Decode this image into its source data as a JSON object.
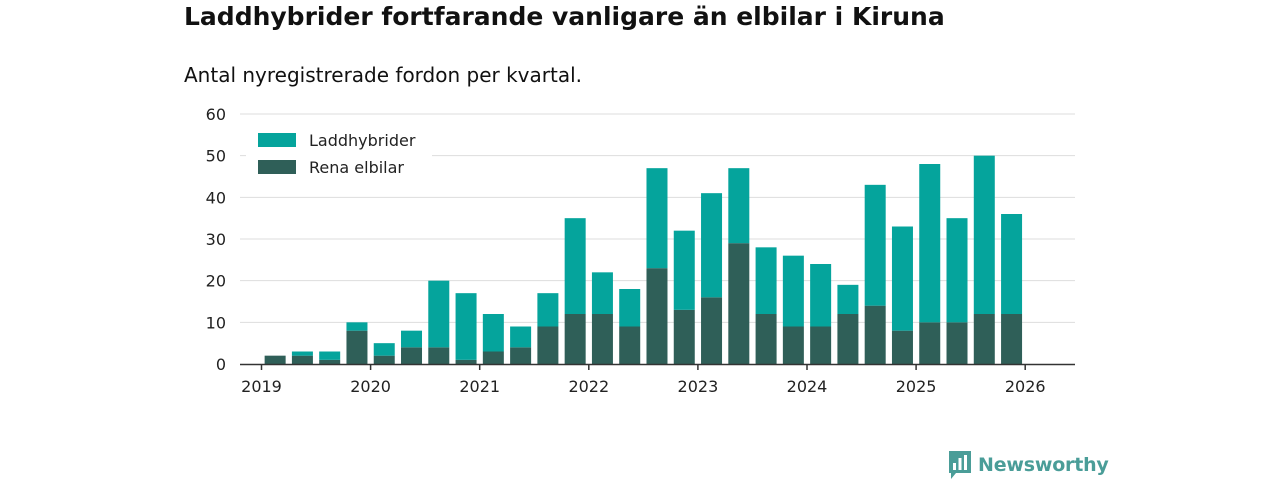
{
  "title": "Laddhybrider fortfarande vanligare än elbilar i Kiruna",
  "subtitle": "Antal nyregistrerade fordon per kvartal.",
  "brand": {
    "name": "Newsworthy",
    "icon": "newsworthy-logo-icon"
  },
  "colors": {
    "laddhybrider": "#05a49c",
    "rena_elbilar": "#2f5f58",
    "grid": "#dddddd",
    "axis": "#333333",
    "brand": "#4a9d98"
  },
  "chart_data": {
    "type": "bar",
    "stacked": true,
    "title": "Laddhybrider fortfarande vanligare än elbilar i Kiruna",
    "subtitle": "Antal nyregistrerade fordon per kvartal.",
    "xlabel": "",
    "ylabel": "",
    "ylim": [
      0,
      60
    ],
    "yticks": [
      0,
      10,
      20,
      30,
      40,
      50,
      60
    ],
    "xticks": [
      "2019",
      "2020",
      "2021",
      "2022",
      "2023",
      "2024",
      "2025",
      "2026"
    ],
    "legend_position": "top-left",
    "categories": [
      "2019 Q1",
      "2019 Q2",
      "2019 Q3",
      "2019 Q4",
      "2020 Q1",
      "2020 Q2",
      "2020 Q3",
      "2020 Q4",
      "2021 Q1",
      "2021 Q2",
      "2021 Q3",
      "2021 Q4",
      "2022 Q1",
      "2022 Q2",
      "2022 Q3",
      "2022 Q4",
      "2023 Q1",
      "2023 Q2",
      "2023 Q3",
      "2023 Q4",
      "2024 Q1",
      "2024 Q2",
      "2024 Q3",
      "2024 Q4",
      "2025 Q1",
      "2025 Q2",
      "2025 Q3",
      "2025 Q4"
    ],
    "series": [
      {
        "name": "Rena elbilar",
        "color": "#2f5f58",
        "values": [
          2,
          2,
          1,
          8,
          2,
          4,
          4,
          1,
          3,
          4,
          9,
          12,
          12,
          9,
          23,
          13,
          16,
          29,
          12,
          9,
          9,
          12,
          14,
          8,
          10,
          10,
          12,
          12
        ]
      },
      {
        "name": "Laddhybrider",
        "color": "#05a49c",
        "values": [
          0,
          1,
          2,
          2,
          3,
          4,
          16,
          16,
          9,
          5,
          8,
          23,
          10,
          9,
          24,
          19,
          25,
          18,
          16,
          17,
          15,
          7,
          29,
          25,
          38,
          25,
          38,
          24
        ]
      }
    ],
    "legend": [
      "Laddhybrider",
      "Rena elbilar"
    ]
  }
}
